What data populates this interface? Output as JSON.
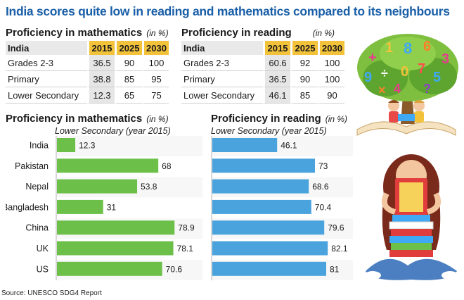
{
  "headline": "India scores quite low in reading and mathematics compared to its neighbours",
  "tables": [
    {
      "title": "Proficiency in mathematics",
      "unit": "(in %)",
      "row_header": "India",
      "years": [
        "2015",
        "2025",
        "2030"
      ],
      "rows": [
        {
          "label": "Grades 2-3",
          "values": [
            "36.5",
            "90",
            "100"
          ]
        },
        {
          "label": "Primary",
          "values": [
            "38.8",
            "85",
            "95"
          ]
        },
        {
          "label": "Lower Secondary",
          "values": [
            "12.3",
            "65",
            "75"
          ]
        }
      ]
    },
    {
      "title": "Proficiency in reading",
      "unit": "(in %)",
      "row_header": "India",
      "years": [
        "2015",
        "2025",
        "2030"
      ],
      "rows": [
        {
          "label": "Grades 2-3",
          "values": [
            "60.6",
            "92",
            "100"
          ]
        },
        {
          "label": "Primary",
          "values": [
            "36.5",
            "90",
            "100"
          ]
        },
        {
          "label": "Lower Secondary",
          "values": [
            "46.1",
            "85",
            "90"
          ]
        }
      ]
    }
  ],
  "chart_data": [
    {
      "type": "bar",
      "orientation": "horizontal",
      "title": "Proficiency in mathematics",
      "unit": "(in %)",
      "subtitle": "Lower Secondary (year 2015)",
      "categories": [
        "India",
        "Pakistan",
        "Nepal",
        "Bangladesh",
        "China",
        "UK",
        "US"
      ],
      "values": [
        12.3,
        68,
        53.8,
        31,
        78.9,
        78.1,
        70.6
      ],
      "value_labels": [
        "12.3",
        "68",
        "53.8",
        "31",
        "78.9",
        "78.1",
        "70.6"
      ],
      "xlim": [
        0,
        100
      ],
      "color": "#6cc04a",
      "grid": false
    },
    {
      "type": "bar",
      "orientation": "horizontal",
      "title": "Proficiency in reading",
      "unit": "(in %)",
      "subtitle": "Lower Secondary (year 2015)",
      "categories": [
        "India",
        "Pakistan",
        "Nepal",
        "Bangladesh",
        "China",
        "UK",
        "US"
      ],
      "values": [
        46.1,
        73,
        68.6,
        70.4,
        79.6,
        82.1,
        81
      ],
      "value_labels": [
        "46.1",
        "73",
        "68.6",
        "70.4",
        "79.6",
        "82.1",
        "81"
      ],
      "xlim": [
        0,
        100
      ],
      "color": "#4aa3dd",
      "grid": false
    }
  ],
  "source": "Source: UNESCO SDG4 Report",
  "colors": {
    "headline": "#1a5fa8",
    "year_header": "#f2c23a",
    "math_bar": "#6cc04a",
    "reading_bar": "#4aa3dd"
  },
  "illustrations": [
    "tree-with-numbers-and-reading-children",
    "girl-reading-on-stack-of-books"
  ]
}
